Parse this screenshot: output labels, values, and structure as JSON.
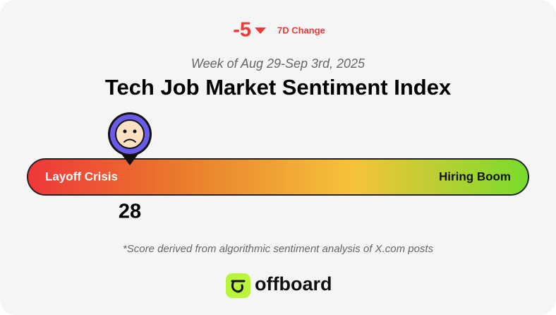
{
  "change": {
    "value": -5,
    "label": "7D Change"
  },
  "week": "Week of Aug 29-Sep 3rd, 2025",
  "title": "Tech Job Market Sentiment Index",
  "scale": {
    "low_label": "Layoff Crisis",
    "high_label": "Hiring Boom"
  },
  "score": 28,
  "footnote": "*Score derived from algorithmic sentiment analysis of X.com posts",
  "brand": "offboard"
}
